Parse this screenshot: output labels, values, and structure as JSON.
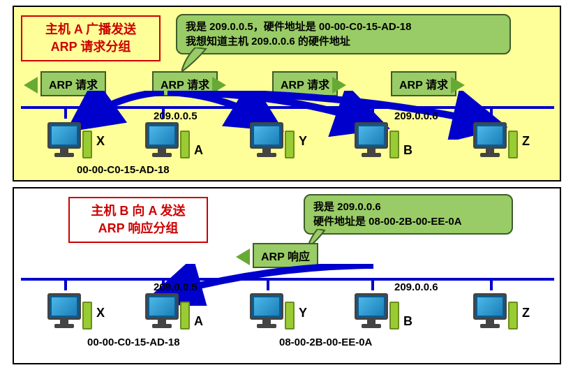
{
  "top": {
    "title": "主机 A 广播发送\nARP 请求分组",
    "bubble": "我是 209.0.0.5，硬件地址是 00-00-C0-15-AD-18\n我想知道主机 209.0.0.6 的硬件地址",
    "req": "ARP 请求",
    "hosts": {
      "x": "X",
      "a": "A",
      "y": "Y",
      "b": "B",
      "z": "Z",
      "a_ip": "209.0.0.5",
      "b_ip": "209.0.0.6",
      "a_mac": "00-00-C0-15-AD-18"
    }
  },
  "bottom": {
    "title": "主机 B 向 A 发送\nARP 响应分组",
    "bubble": "我是 209.0.0.6\n硬件地址是 08-00-2B-00-EE-0A",
    "resp": "ARP 响应",
    "hosts": {
      "x": "X",
      "a": "A",
      "y": "Y",
      "b": "B",
      "z": "Z",
      "a_ip": "209.0.0.5",
      "b_ip": "209.0.0.6",
      "a_mac": "00-00-C0-15-AD-18",
      "b_mac": "08-00-2B-00-EE-0A"
    }
  },
  "colors": {
    "panel_bg": "#ffff99",
    "title_border": "#cc0000",
    "bubble_bg": "#99cc66",
    "bus": "#0000cc",
    "curve": "#0000cc",
    "pc_green": "#99cc33"
  }
}
